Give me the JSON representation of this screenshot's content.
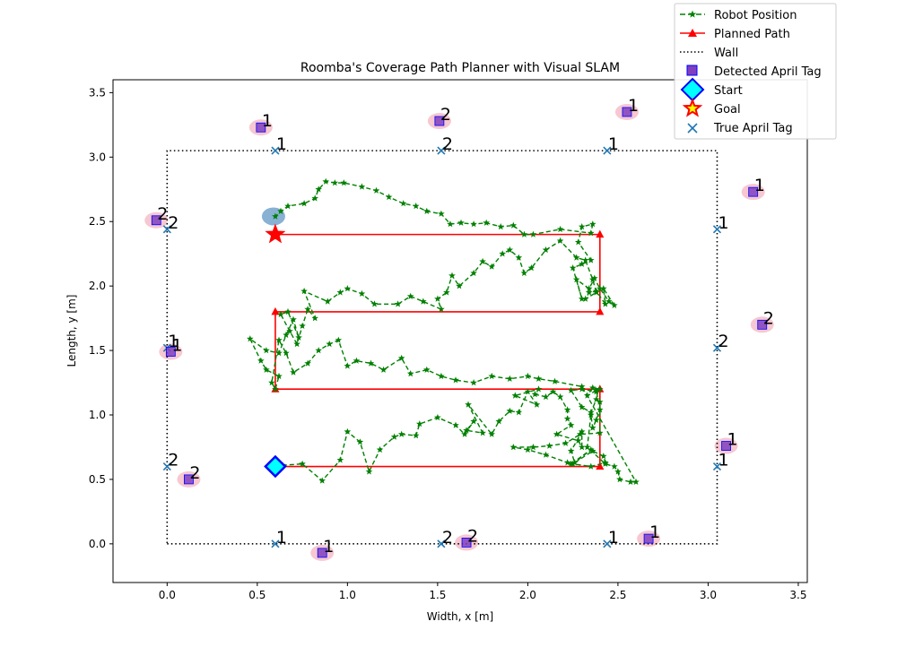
{
  "chart_data": {
    "type": "scatter",
    "title": "Roomba's Coverage Path Planner with Visual SLAM",
    "xlabel": "Width, x [m]",
    "ylabel": "Length, y [m]",
    "xlim": [
      -0.3,
      3.55
    ],
    "ylim": [
      -0.3,
      3.6
    ],
    "xticks": [
      "0.0",
      "0.5",
      "1.0",
      "1.5",
      "2.0",
      "2.5",
      "3.0",
      "3.5"
    ],
    "yticks": [
      "0.0",
      "0.5",
      "1.0",
      "1.5",
      "2.0",
      "2.5",
      "3.0",
      "3.5"
    ],
    "grid": false,
    "legend_position": "top-right",
    "legend": [
      "Robot Position",
      "Planned Path",
      "Wall",
      "Detected April Tag",
      "Start",
      "Goal",
      "True April Tag"
    ],
    "colors": {
      "robot": "#008000",
      "planned": "#ff0000",
      "wall": "#000000",
      "detected": "#7f3fbf",
      "detected_edge": "#0000ff",
      "start_fill": "#00ffff",
      "start_edge": "#0000ff",
      "goal_fill": "#ffff00",
      "goal_edge": "#ff0000",
      "true_tag": "#1f77b4",
      "tag_ellipse": "#f4b6c2",
      "robot_ellipse": "#6a9ec9"
    },
    "wall": {
      "x": [
        0,
        3.05,
        3.05,
        0,
        0
      ],
      "y": [
        0,
        0,
        3.05,
        3.05,
        0
      ]
    },
    "planned_path": {
      "x": [
        0.6,
        2.4,
        2.4,
        0.6,
        0.6,
        2.4,
        2.4,
        0.6
      ],
      "y": [
        0.6,
        0.6,
        1.2,
        1.2,
        1.8,
        1.8,
        2.4,
        2.4
      ]
    },
    "start": [
      0.6,
      0.6
    ],
    "goal": [
      0.6,
      2.4
    ],
    "robot_position": [
      [
        0.6,
        0.6
      ],
      [
        0.64,
        0.61
      ],
      [
        0.75,
        0.62
      ],
      [
        0.86,
        0.49
      ],
      [
        0.96,
        0.65
      ],
      [
        1.0,
        0.87
      ],
      [
        1.07,
        0.79
      ],
      [
        1.12,
        0.56
      ],
      [
        1.18,
        0.73
      ],
      [
        1.26,
        0.83
      ],
      [
        1.3,
        0.85
      ],
      [
        1.38,
        0.84
      ],
      [
        1.4,
        0.93
      ],
      [
        1.5,
        0.98
      ],
      [
        1.6,
        0.92
      ],
      [
        1.65,
        0.85
      ],
      [
        1.7,
        0.95
      ],
      [
        1.66,
        0.88
      ],
      [
        1.75,
        0.86
      ],
      [
        1.67,
        1.08
      ],
      [
        1.8,
        0.85
      ],
      [
        1.84,
        0.95
      ],
      [
        1.9,
        1.03
      ],
      [
        1.95,
        1.02
      ],
      [
        2.0,
        1.18
      ],
      [
        2.05,
        1.08
      ],
      [
        1.93,
        1.15
      ],
      [
        2.06,
        1.2
      ],
      [
        2.04,
        1.16
      ],
      [
        2.1,
        1.14
      ],
      [
        2.14,
        1.18
      ],
      [
        2.18,
        1.14
      ],
      [
        2.22,
        1.04
      ],
      [
        2.22,
        0.97
      ],
      [
        2.24,
        0.92
      ],
      [
        2.16,
        0.85
      ],
      [
        2.28,
        0.8
      ],
      [
        2.3,
        0.75
      ],
      [
        2.3,
        0.87
      ],
      [
        2.24,
        0.72
      ],
      [
        2.26,
        0.63
      ],
      [
        2.36,
        0.72
      ],
      [
        2.42,
        0.68
      ],
      [
        2.43,
        0.63
      ],
      [
        2.35,
        0.6
      ],
      [
        2.25,
        0.62
      ],
      [
        2.35,
        0.73
      ],
      [
        2.24,
        0.62
      ],
      [
        2.22,
        0.63
      ],
      [
        2.1,
        0.69
      ],
      [
        2.0,
        0.73
      ],
      [
        1.92,
        0.75
      ],
      [
        2.03,
        0.75
      ],
      [
        2.12,
        0.76
      ],
      [
        2.21,
        0.78
      ],
      [
        2.29,
        0.85
      ],
      [
        2.4,
        0.86
      ],
      [
        2.4,
        1.1
      ],
      [
        2.38,
        1.12
      ],
      [
        2.35,
        1.02
      ],
      [
        2.3,
        1.06
      ],
      [
        2.24,
        1.19
      ],
      [
        2.3,
        1.2
      ],
      [
        2.38,
        1.18
      ],
      [
        2.4,
        1.2
      ],
      [
        2.36,
        1.21
      ],
      [
        2.33,
        1.15
      ],
      [
        2.38,
        1.19
      ],
      [
        2.4,
        1.04
      ],
      [
        2.38,
        0.96
      ],
      [
        2.36,
        0.9
      ],
      [
        2.35,
        1.0
      ],
      [
        2.33,
        0.75
      ],
      [
        2.43,
        0.62
      ],
      [
        2.48,
        0.6
      ],
      [
        2.5,
        0.56
      ],
      [
        2.51,
        0.5
      ],
      [
        2.57,
        0.48
      ],
      [
        2.6,
        0.48
      ],
      [
        2.3,
        1.22
      ],
      [
        2.15,
        1.26
      ],
      [
        2.06,
        1.28
      ],
      [
        2.0,
        1.3
      ],
      [
        1.9,
        1.28
      ],
      [
        1.8,
        1.3
      ],
      [
        1.7,
        1.25
      ],
      [
        1.6,
        1.27
      ],
      [
        1.52,
        1.3
      ],
      [
        1.44,
        1.35
      ],
      [
        1.35,
        1.32
      ],
      [
        1.3,
        1.44
      ],
      [
        1.2,
        1.35
      ],
      [
        1.13,
        1.4
      ],
      [
        1.05,
        1.42
      ],
      [
        1.0,
        1.38
      ],
      [
        0.95,
        1.58
      ],
      [
        0.9,
        1.55
      ],
      [
        0.84,
        1.5
      ],
      [
        0.78,
        1.4
      ],
      [
        0.7,
        1.33
      ],
      [
        0.66,
        1.48
      ],
      [
        0.62,
        1.58
      ],
      [
        0.58,
        1.25
      ],
      [
        0.6,
        1.2
      ],
      [
        0.62,
        1.3
      ],
      [
        0.55,
        1.35
      ],
      [
        0.52,
        1.42
      ],
      [
        0.46,
        1.59
      ],
      [
        0.55,
        1.5
      ],
      [
        0.62,
        1.48
      ],
      [
        0.66,
        1.62
      ],
      [
        0.7,
        1.74
      ],
      [
        0.73,
        1.6
      ],
      [
        0.67,
        1.8
      ],
      [
        0.63,
        1.78
      ],
      [
        0.68,
        1.65
      ],
      [
        0.72,
        1.55
      ],
      [
        0.75,
        1.69
      ],
      [
        0.78,
        1.82
      ],
      [
        0.82,
        1.75
      ],
      [
        0.76,
        1.96
      ],
      [
        0.89,
        1.88
      ],
      [
        0.96,
        1.95
      ],
      [
        1.0,
        1.98
      ],
      [
        1.08,
        1.94
      ],
      [
        1.15,
        1.86
      ],
      [
        1.28,
        1.86
      ],
      [
        1.35,
        1.92
      ],
      [
        1.42,
        1.88
      ],
      [
        1.52,
        1.82
      ],
      [
        1.5,
        1.9
      ],
      [
        1.55,
        1.95
      ],
      [
        1.58,
        2.08
      ],
      [
        1.62,
        2.0
      ],
      [
        1.7,
        2.1
      ],
      [
        1.75,
        2.19
      ],
      [
        1.8,
        2.15
      ],
      [
        1.86,
        2.25
      ],
      [
        1.9,
        2.28
      ],
      [
        1.95,
        2.22
      ],
      [
        1.98,
        2.1
      ],
      [
        2.02,
        2.14
      ],
      [
        2.1,
        2.28
      ],
      [
        2.18,
        2.35
      ],
      [
        2.27,
        2.22
      ],
      [
        2.32,
        2.2
      ],
      [
        2.36,
        2.05
      ],
      [
        2.38,
        1.95
      ],
      [
        2.32,
        1.9
      ],
      [
        2.34,
        1.95
      ],
      [
        2.38,
        1.96
      ],
      [
        2.43,
        1.86
      ],
      [
        2.42,
        1.98
      ],
      [
        2.48,
        1.85
      ],
      [
        2.45,
        1.88
      ],
      [
        2.4,
        1.98
      ],
      [
        2.37,
        2.06
      ],
      [
        2.34,
        1.98
      ],
      [
        2.27,
        2.05
      ],
      [
        2.3,
        1.9
      ],
      [
        2.25,
        2.14
      ],
      [
        2.3,
        2.17
      ],
      [
        2.35,
        2.2
      ],
      [
        2.28,
        2.34
      ],
      [
        2.3,
        2.46
      ],
      [
        2.36,
        2.48
      ],
      [
        2.35,
        2.41
      ],
      [
        2.18,
        2.44
      ],
      [
        2.03,
        2.4
      ],
      [
        1.98,
        2.4
      ],
      [
        1.92,
        2.47
      ],
      [
        1.85,
        2.46
      ],
      [
        1.77,
        2.49
      ],
      [
        1.7,
        2.48
      ],
      [
        1.63,
        2.49
      ],
      [
        1.57,
        2.48
      ],
      [
        1.52,
        2.56
      ],
      [
        1.44,
        2.58
      ],
      [
        1.38,
        2.62
      ],
      [
        1.31,
        2.64
      ],
      [
        1.23,
        2.69
      ],
      [
        1.16,
        2.74
      ],
      [
        1.08,
        2.77
      ],
      [
        0.98,
        2.8
      ],
      [
        0.93,
        2.8
      ],
      [
        0.88,
        2.81
      ],
      [
        0.84,
        2.75
      ],
      [
        0.82,
        2.68
      ],
      [
        0.76,
        2.64
      ],
      [
        0.67,
        2.62
      ],
      [
        0.63,
        2.58
      ],
      [
        0.6,
        2.54
      ]
    ],
    "detected_tags": [
      {
        "x": 0.52,
        "y": 3.23,
        "label": "1"
      },
      {
        "x": 1.51,
        "y": 3.28,
        "label": "2"
      },
      {
        "x": 2.55,
        "y": 3.35,
        "label": "1"
      },
      {
        "x": 3.25,
        "y": 2.73,
        "label": "1"
      },
      {
        "x": -0.06,
        "y": 2.51,
        "label": "2"
      },
      {
        "x": 3.3,
        "y": 1.7,
        "label": "2"
      },
      {
        "x": 0.02,
        "y": 1.49,
        "label": "1"
      },
      {
        "x": 3.1,
        "y": 0.76,
        "label": "1"
      },
      {
        "x": 0.12,
        "y": 0.5,
        "label": "2"
      },
      {
        "x": 0.86,
        "y": -0.07,
        "label": "1"
      },
      {
        "x": 1.66,
        "y": 0.01,
        "label": "2"
      },
      {
        "x": 2.67,
        "y": 0.04,
        "label": "1"
      }
    ],
    "true_tags": [
      {
        "x": 0.6,
        "y": 3.05,
        "label": "1"
      },
      {
        "x": 1.52,
        "y": 3.05,
        "label": "2"
      },
      {
        "x": 2.44,
        "y": 3.05,
        "label": "1"
      },
      {
        "x": 3.05,
        "y": 2.44,
        "label": "1"
      },
      {
        "x": 0.0,
        "y": 2.44,
        "label": "2"
      },
      {
        "x": 3.05,
        "y": 1.52,
        "label": "2"
      },
      {
        "x": 0.0,
        "y": 1.52,
        "label": "1"
      },
      {
        "x": 3.05,
        "y": 0.6,
        "label": "1"
      },
      {
        "x": 0.0,
        "y": 0.6,
        "label": "2"
      },
      {
        "x": 0.6,
        "y": 0.0,
        "label": "1"
      },
      {
        "x": 1.52,
        "y": 0.0,
        "label": "2"
      },
      {
        "x": 2.44,
        "y": 0.0,
        "label": "1"
      }
    ],
    "robot_uncertainty": {
      "x": 0.59,
      "y": 2.54
    }
  }
}
